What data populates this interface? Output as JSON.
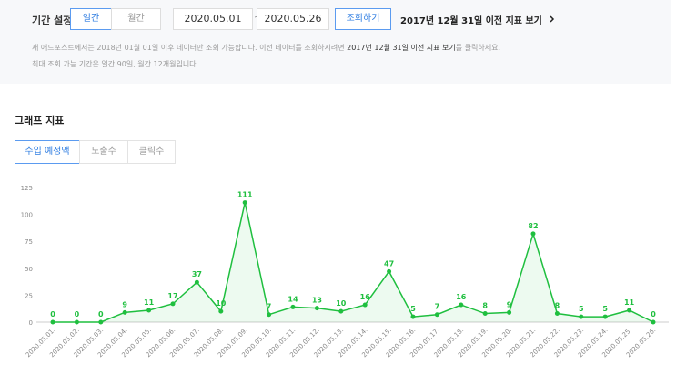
{
  "filter": {
    "label": "기간 설정",
    "period_tabs": [
      "일간",
      "월간"
    ],
    "start_date": "2020.05.01",
    "separator": "~",
    "end_date": "2020.05.26",
    "search_button": "조회하기",
    "legacy_link": "2017년 12월 31일 이전 지표 보기"
  },
  "notice": {
    "line1_before": "새 애드포스트에서는 2018년 01월 01일 이후 데이터만 조회 가능합니다. 이전 데이터를 조회하시려면 ",
    "line1_bold": "2017년 12월 31일 이전 지표 보기",
    "line1_after": "를 클릭하세요.",
    "line2": "최대 조회 가능 기간은 일간 90일, 월간 12개월입니다."
  },
  "section_title": "그래프 지표",
  "metric_tabs": [
    "수입 예정액",
    "노출수",
    "클릭수"
  ],
  "chart_data": {
    "type": "line",
    "categories": [
      "2020.05.01.",
      "2020.05.02.",
      "2020.05.03.",
      "2020.05.04.",
      "2020.05.05.",
      "2020.05.06.",
      "2020.05.07.",
      "2020.05.08.",
      "2020.05.09.",
      "2020.05.10.",
      "2020.05.11.",
      "2020.05.12.",
      "2020.05.13.",
      "2020.05.14.",
      "2020.05.15.",
      "2020.05.16.",
      "2020.05.17.",
      "2020.05.18.",
      "2020.05.19.",
      "2020.05.20.",
      "2020.05.21.",
      "2020.05.22.",
      "2020.05.23.",
      "2020.05.24.",
      "2020.05.25.",
      "2020.05.26."
    ],
    "values": [
      0,
      0,
      0,
      9,
      11,
      17,
      37,
      10,
      111,
      7,
      14,
      13,
      10,
      16,
      47,
      5,
      7,
      16,
      8,
      9,
      82,
      8,
      5,
      5,
      11,
      0
    ],
    "color": "#1fbf3f",
    "ylim": [
      0,
      125
    ],
    "yticks": [
      0,
      25,
      50,
      75,
      100,
      125
    ],
    "grid": false,
    "area": true,
    "data_labels": true
  }
}
